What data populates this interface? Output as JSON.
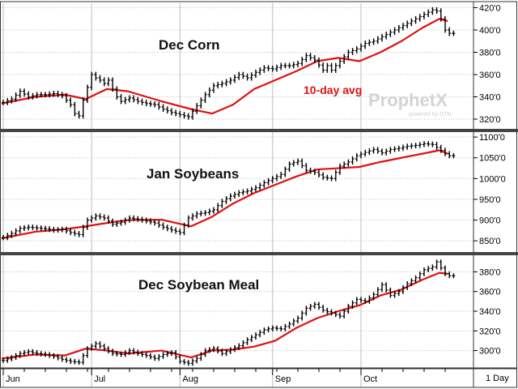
{
  "watermark": {
    "brand": "ProphetX",
    "tagline": "powered by DTN"
  },
  "period_label": "1 Day",
  "x_axis": {
    "months": [
      "Jun",
      "Jul",
      "Aug",
      "Sep",
      "Oct"
    ],
    "month_start_days": [
      0,
      21,
      42,
      64,
      85
    ],
    "total_days": 107
  },
  "colors": {
    "price_bars": "#000000",
    "moving_average": "#e01010",
    "panel_border": "#333333",
    "grid": "#bdbdbd"
  },
  "chart_data": [
    {
      "type": "line",
      "title": "Dec Corn",
      "ylim": [
        312,
        424
      ],
      "yticks": [
        320,
        340,
        360,
        380,
        400,
        420
      ],
      "ytick_labels": [
        "320'0",
        "340'0",
        "360'0",
        "380'0",
        "400'0",
        "420'0"
      ],
      "annotation": "10-day avg",
      "series": [
        {
          "name": "10-day avg",
          "role": "average",
          "x": [
            0,
            8,
            15,
            20,
            25,
            30,
            38,
            45,
            50,
            55,
            60,
            65,
            70,
            75,
            80,
            85,
            90,
            95,
            100,
            104,
            106
          ],
          "values": [
            334,
            340,
            342,
            338,
            347,
            345,
            336,
            329,
            325,
            333,
            347,
            355,
            363,
            372,
            375,
            372,
            380,
            390,
            402,
            410,
            408
          ]
        },
        {
          "name": "",
          "role": "price",
          "x": [
            0,
            2,
            4,
            6,
            8,
            10,
            12,
            14,
            16,
            17,
            18,
            19,
            21,
            22,
            23,
            24,
            25,
            26,
            27,
            28,
            30,
            32,
            34,
            36,
            38,
            40,
            42,
            44,
            46,
            48,
            50,
            52,
            54,
            56,
            58,
            60,
            62,
            64,
            66,
            68,
            70,
            72,
            74,
            76,
            77,
            78,
            80,
            82,
            84,
            86,
            88,
            90,
            92,
            94,
            96,
            98,
            100,
            101,
            102,
            103,
            104,
            105,
            106
          ],
          "values": [
            335,
            338,
            345,
            340,
            342,
            342,
            343,
            341,
            333,
            325,
            323,
            337,
            360,
            357,
            355,
            352,
            355,
            347,
            340,
            336,
            339,
            336,
            334,
            333,
            329,
            326,
            324,
            322,
            332,
            342,
            350,
            352,
            355,
            360,
            357,
            362,
            366,
            365,
            368,
            368,
            370,
            377,
            373,
            364,
            368,
            364,
            372,
            380,
            383,
            388,
            390,
            394,
            398,
            402,
            406,
            410,
            414,
            416,
            418,
            417,
            410,
            400,
            397
          ]
        }
      ]
    },
    {
      "type": "line",
      "title": "Jan Soybeans",
      "ylim": [
        825,
        1110
      ],
      "yticks": [
        850,
        900,
        950,
        1000,
        1050,
        1100
      ],
      "ytick_labels": [
        "850'0",
        "900'0",
        "950'0",
        "1000'0",
        "1050'0",
        "1100'0"
      ],
      "series": [
        {
          "name": "",
          "role": "average",
          "x": [
            0,
            8,
            15,
            20,
            25,
            30,
            38,
            45,
            50,
            55,
            60,
            65,
            70,
            75,
            80,
            85,
            90,
            95,
            100,
            104,
            106
          ],
          "values": [
            856,
            872,
            878,
            885,
            893,
            900,
            901,
            885,
            908,
            940,
            965,
            985,
            1005,
            1022,
            1025,
            1028,
            1040,
            1050,
            1060,
            1068,
            1060
          ]
        },
        {
          "name": "",
          "role": "price",
          "x": [
            0,
            2,
            4,
            6,
            8,
            10,
            12,
            14,
            16,
            18,
            20,
            22,
            24,
            26,
            28,
            30,
            32,
            34,
            36,
            38,
            40,
            42,
            44,
            46,
            48,
            50,
            52,
            54,
            56,
            58,
            60,
            62,
            64,
            66,
            68,
            70,
            72,
            74,
            76,
            78,
            80,
            82,
            84,
            86,
            88,
            90,
            92,
            94,
            96,
            98,
            100,
            102,
            103,
            104,
            105,
            106
          ],
          "values": [
            858,
            868,
            880,
            883,
            881,
            879,
            876,
            878,
            870,
            865,
            900,
            910,
            905,
            890,
            895,
            905,
            902,
            898,
            893,
            883,
            876,
            870,
            905,
            915,
            918,
            925,
            945,
            958,
            966,
            970,
            978,
            990,
            1000,
            1010,
            1035,
            1042,
            1020,
            1015,
            1003,
            1000,
            1030,
            1040,
            1055,
            1063,
            1070,
            1062,
            1070,
            1073,
            1078,
            1080,
            1084,
            1082,
            1075,
            1068,
            1060,
            1055
          ]
        }
      ]
    },
    {
      "type": "line",
      "title": "Dec Soybean Meal",
      "ylim": [
        284,
        396
      ],
      "yticks": [
        300,
        320,
        340,
        360,
        380
      ],
      "ytick_labels": [
        "300'0",
        "320'0",
        "340'0",
        "360'0",
        "380'0"
      ],
      "series": [
        {
          "name": "",
          "role": "average",
          "x": [
            0,
            8,
            15,
            20,
            25,
            30,
            38,
            45,
            50,
            55,
            60,
            65,
            70,
            75,
            80,
            85,
            90,
            95,
            100,
            104,
            106
          ],
          "values": [
            292,
            296,
            295,
            302,
            300,
            297,
            300,
            293,
            300,
            301,
            304,
            310,
            323,
            333,
            340,
            346,
            356,
            362,
            372,
            379,
            378
          ]
        },
        {
          "name": "",
          "role": "price",
          "x": [
            0,
            2,
            4,
            6,
            8,
            10,
            12,
            14,
            16,
            18,
            20,
            22,
            24,
            26,
            28,
            30,
            32,
            34,
            36,
            38,
            40,
            42,
            44,
            46,
            48,
            50,
            52,
            54,
            56,
            58,
            60,
            62,
            64,
            66,
            68,
            70,
            72,
            74,
            76,
            78,
            80,
            82,
            84,
            86,
            88,
            90,
            92,
            94,
            96,
            98,
            100,
            102,
            103,
            104,
            105,
            106
          ],
          "values": [
            290,
            293,
            297,
            299,
            297,
            296,
            294,
            291,
            289,
            288,
            302,
            307,
            302,
            297,
            296,
            300,
            297,
            295,
            292,
            296,
            298,
            289,
            287,
            292,
            300,
            302,
            297,
            301,
            305,
            311,
            316,
            321,
            323,
            322,
            327,
            333,
            343,
            347,
            341,
            338,
            335,
            345,
            352,
            350,
            357,
            367,
            356,
            360,
            368,
            374,
            382,
            385,
            390,
            384,
            378,
            376
          ]
        }
      ]
    }
  ]
}
